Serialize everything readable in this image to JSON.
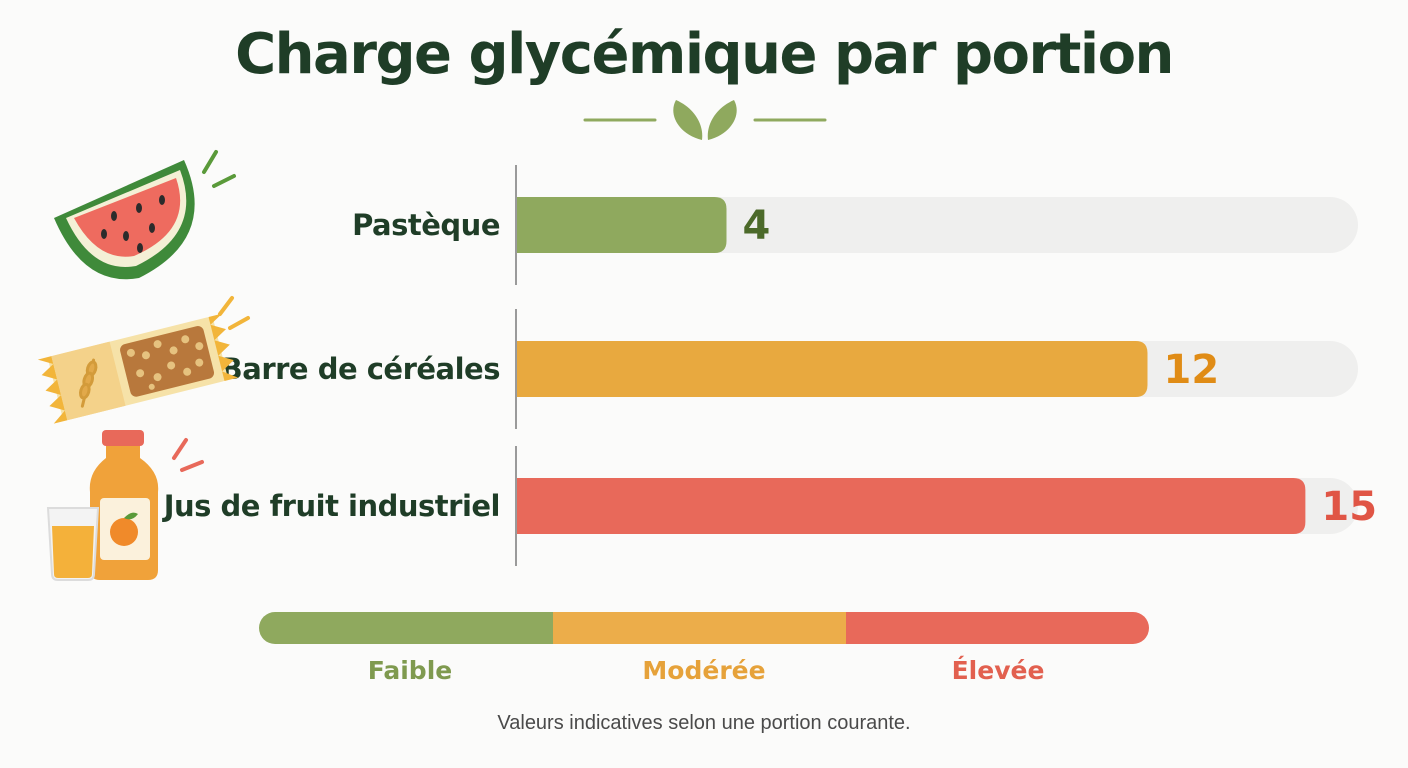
{
  "chart_data": {
    "type": "bar",
    "orientation": "horizontal",
    "title": "Charge glycémique par portion",
    "categories": [
      "Pastèque",
      "Barre de céréales",
      "Jus de fruit industriel"
    ],
    "values": [
      4,
      12,
      15
    ],
    "bar_colors": [
      "#8fa95e",
      "#e8a93f",
      "#e8695a"
    ],
    "xlim": [
      0,
      16
    ],
    "grid": false,
    "scale": {
      "labels": [
        "Faible",
        "Modérée",
        "Élevée"
      ],
      "colors": [
        "#8fa95e",
        "#e8a93f",
        "#e8695a"
      ]
    },
    "note": "Valeurs indicatives selon une portion courante."
  },
  "icons": [
    "watermelon-icon",
    "cereal-bar-icon",
    "juice-bottle-icon",
    "leaf-icon"
  ]
}
